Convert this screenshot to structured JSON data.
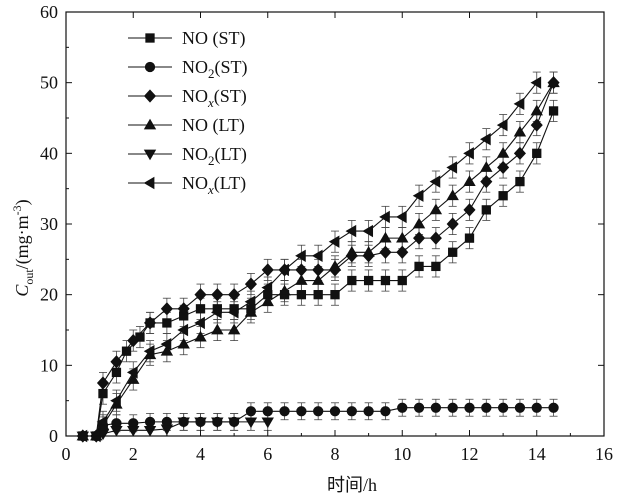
{
  "chart_data": {
    "type": "line",
    "title": "",
    "xlabel": "时间/h",
    "ylabel": {
      "main": "C",
      "sub": "out",
      "unit": "/(mg·m",
      "sup": "-3",
      "close": ")"
    },
    "xlim": [
      0,
      16
    ],
    "ylim": [
      0,
      60
    ],
    "xticks": [
      0,
      2,
      4,
      6,
      8,
      10,
      12,
      14,
      16
    ],
    "yticks": [
      0,
      10,
      20,
      30,
      40,
      50,
      60
    ],
    "legend_position": "top-left",
    "series": [
      {
        "name": "NO (ST)",
        "legend": {
          "base": "NO",
          "sub": "",
          "suffix": " (ST)",
          "sub_italic": false
        },
        "marker": "square",
        "x": [
          0.5,
          0.9,
          1.1,
          1.5,
          1.8,
          2.2,
          2.5,
          3.0,
          3.5,
          4.0,
          4.5,
          5.0,
          5.5,
          6.0,
          6.5,
          7.0,
          7.5,
          8.0,
          8.5,
          9.0,
          9.5,
          10.0,
          10.5,
          11.0,
          11.5,
          12.0,
          12.5,
          13.0,
          13.5,
          14.0,
          14.5
        ],
        "y": [
          0,
          0,
          6,
          9,
          12,
          14,
          16,
          16,
          17,
          18,
          18,
          18,
          18,
          20,
          20,
          20,
          20,
          20,
          22,
          22,
          22,
          22,
          24,
          24,
          26,
          28,
          32,
          34,
          36,
          40,
          46
        ],
        "error": 1.5
      },
      {
        "name": "NO2(ST)",
        "legend": {
          "base": "NO",
          "sub": "2",
          "suffix": "(ST)",
          "sub_italic": false
        },
        "marker": "circle",
        "x": [
          0.5,
          0.9,
          1.1,
          1.5,
          2.0,
          2.5,
          3.0,
          3.5,
          4.0,
          4.5,
          5.0,
          5.5,
          6.0,
          6.5,
          7.0,
          7.5,
          8.0,
          8.5,
          9.0,
          9.5,
          10.0,
          10.5,
          11.0,
          11.5,
          12.0,
          12.5,
          13.0,
          13.5,
          14.0,
          14.5
        ],
        "y": [
          0,
          0,
          1.5,
          1.8,
          1.8,
          2,
          2,
          2,
          2,
          2,
          2,
          3.5,
          3.5,
          3.5,
          3.5,
          3.5,
          3.5,
          3.5,
          3.5,
          3.5,
          4,
          4,
          4,
          4,
          4,
          4,
          4,
          4,
          4,
          4
        ],
        "error": 1.2
      },
      {
        "name": "NOx(ST)",
        "legend": {
          "base": "NO",
          "sub": "x",
          "suffix": "(ST)",
          "sub_italic": true
        },
        "marker": "diamond",
        "x": [
          0.5,
          0.9,
          1.1,
          1.5,
          2.0,
          2.5,
          3.0,
          3.5,
          4.0,
          4.5,
          5.0,
          5.5,
          6.0,
          6.5,
          7.0,
          7.5,
          8.0,
          8.5,
          9.0,
          9.5,
          10.0,
          10.5,
          11.0,
          11.5,
          12.0,
          12.5,
          13.0,
          13.5,
          14.0,
          14.5
        ],
        "y": [
          0,
          0,
          7.5,
          10.5,
          13.5,
          16,
          18,
          18,
          20,
          20,
          20,
          21.5,
          23.5,
          23.5,
          23.5,
          23.5,
          23.5,
          25.5,
          25.5,
          26,
          26,
          28,
          28,
          30,
          32,
          36,
          38,
          40,
          44,
          50
        ],
        "error": 1.5
      },
      {
        "name": "NO (LT)",
        "legend": {
          "base": "NO",
          "sub": "",
          "suffix": " (LT)",
          "sub_italic": false
        },
        "marker": "triangle-up",
        "x": [
          0.5,
          0.9,
          1.1,
          1.5,
          2.0,
          2.5,
          3.0,
          3.5,
          4.0,
          4.5,
          5.0,
          5.5,
          6.0,
          6.5,
          7.0,
          7.5,
          8.0,
          8.5,
          9.0,
          9.5,
          10.0,
          10.5,
          11.0,
          11.5,
          12.0,
          12.5,
          13.0,
          13.5,
          14.0,
          14.5
        ],
        "y": [
          0,
          0,
          1.5,
          4.5,
          8,
          11.5,
          12,
          13,
          14,
          15,
          15,
          17.5,
          19,
          20.5,
          22,
          22,
          24,
          26,
          26,
          28,
          28,
          30,
          32,
          34,
          36,
          38,
          40,
          43,
          46,
          50
        ],
        "error": 1.5
      },
      {
        "name": "NO2(LT)",
        "legend": {
          "base": "NO",
          "sub": "2",
          "suffix": "(LT)",
          "sub_italic": false
        },
        "marker": "triangle-down",
        "x": [
          0.5,
          0.9,
          1.1,
          1.5,
          2.0,
          2.5,
          3.0,
          3.5,
          4.0,
          4.5,
          5.0,
          5.5,
          6.0
        ],
        "y": [
          0,
          0,
          0.3,
          0.8,
          0.8,
          0.8,
          1,
          2,
          2,
          2,
          2,
          2,
          2
        ],
        "error": 1.2
      },
      {
        "name": "NOx(LT)",
        "legend": {
          "base": "NO",
          "sub": "x",
          "suffix": "(LT)",
          "sub_italic": true
        },
        "marker": "triangle-left",
        "x": [
          0.5,
          0.9,
          1.1,
          1.5,
          2.0,
          2.5,
          3.0,
          3.5,
          4.0,
          4.5,
          5.0,
          5.5,
          6.0,
          6.5,
          7.0,
          7.5,
          8.0,
          8.5,
          9.0,
          9.5,
          10.0,
          10.5,
          11.0,
          11.5,
          12.0,
          12.5,
          13.0,
          13.5,
          14.0
        ],
        "y": [
          0,
          0,
          2,
          5,
          9,
          12,
          13,
          15,
          16,
          17.5,
          17.5,
          19,
          21,
          23.5,
          25.5,
          25.5,
          27.5,
          29,
          29,
          31,
          31,
          34,
          36,
          38,
          40,
          42,
          44,
          47,
          50
        ],
        "error": 1.5
      }
    ]
  }
}
